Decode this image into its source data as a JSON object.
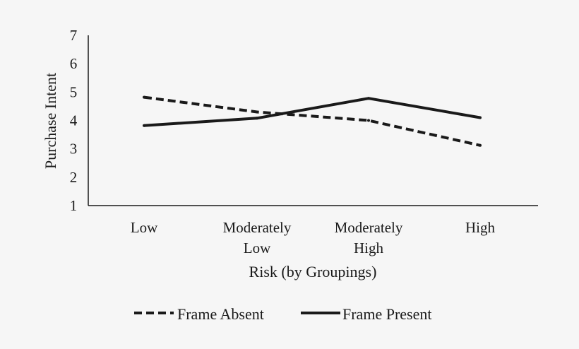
{
  "colors": {
    "background": "#f6f6f6",
    "series": "#1a1a1a"
  },
  "chart_data": {
    "type": "line",
    "title": "",
    "xlabel": "Risk (by Groupings)",
    "ylabel": "Purchase Intent",
    "ylim": [
      1,
      7
    ],
    "yticks": [
      "1",
      "2",
      "3",
      "4",
      "5",
      "6",
      "7"
    ],
    "categories": [
      "Low",
      "Moderately Low",
      "Moderately High",
      "High"
    ],
    "categories_display": [
      [
        "Low"
      ],
      [
        "Moderately",
        "Low"
      ],
      [
        "Moderately",
        "High"
      ],
      [
        "High"
      ]
    ],
    "grid": false,
    "legend_position": "bottom",
    "series": [
      {
        "name": "Frame Absent",
        "style": "dashed",
        "values": [
          4.82,
          4.3,
          4.0,
          3.12
        ]
      },
      {
        "name": "Frame Present",
        "style": "solid",
        "values": [
          3.82,
          4.08,
          4.78,
          4.1
        ]
      }
    ]
  }
}
